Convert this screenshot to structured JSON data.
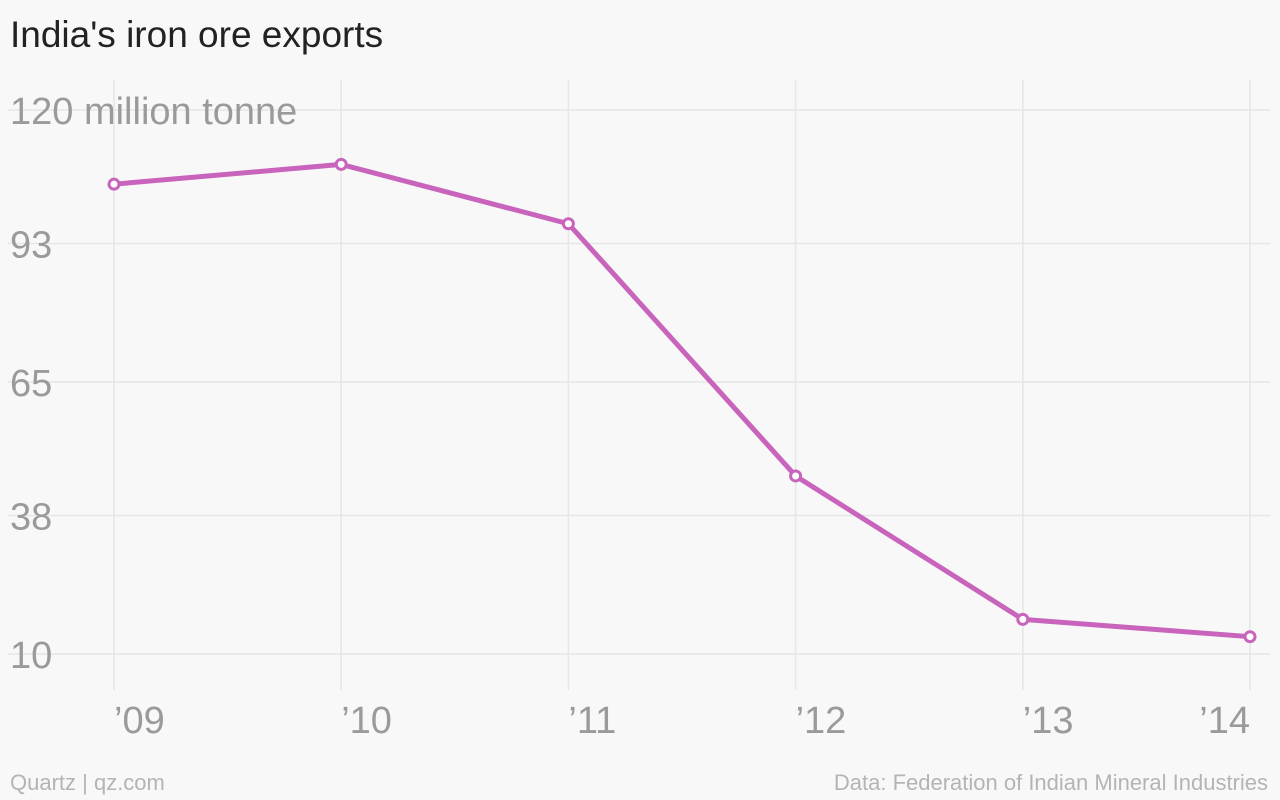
{
  "chart_data": {
    "type": "line",
    "title": "India's iron ore exports",
    "x": [
      "’09",
      "’10",
      "’11",
      "’12",
      "’13",
      "’14"
    ],
    "series": [
      {
        "values": [
          105,
          109,
          97,
          46,
          17,
          13.5
        ]
      }
    ],
    "ylabel": "",
    "y_ticks": [
      10,
      38,
      65,
      93,
      120
    ],
    "y_tick_labels": [
      "10",
      "38",
      "65",
      "93",
      "120 million tonne"
    ],
    "ylim": [
      10,
      120
    ],
    "grid": true,
    "legend": "none"
  },
  "footer": {
    "credit": "Quartz | qz.com",
    "source": "Data: Federation of Indian Mineral Industries"
  },
  "colors": {
    "line": "#c864bc",
    "marker_fill": "#ffffff",
    "grid": "#e6e6e6",
    "tick_text": "#9a9a9a",
    "title_text": "#222222",
    "footer_text": "#b4b4b4",
    "background": "#f8f8f8"
  }
}
